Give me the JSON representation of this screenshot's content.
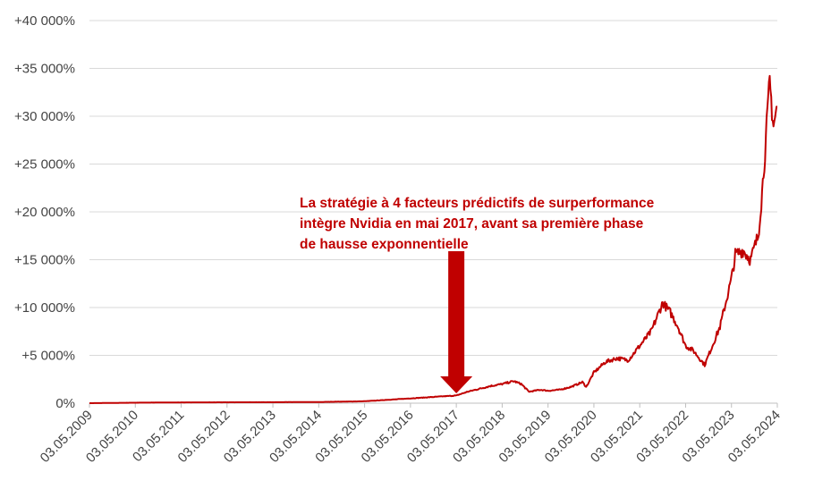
{
  "chart_data": {
    "type": "line",
    "title": "",
    "xlabel": "",
    "ylabel": "",
    "ylim": [
      0,
      40000
    ],
    "y_ticks": [
      "0%",
      "+5 000%",
      "+10 000%",
      "+15 000%",
      "+20 000%",
      "+25 000%",
      "+30 000%",
      "+35 000%",
      "+40 000%"
    ],
    "y_tick_values": [
      0,
      5000,
      10000,
      15000,
      20000,
      25000,
      30000,
      35000,
      40000
    ],
    "x_ticks": [
      "03.05.2009",
      "03.05.2010",
      "03.05.2011",
      "03.05.2012",
      "03.05.2013",
      "03.05.2014",
      "03.05.2015",
      "03.05.2016",
      "03.05.2017",
      "03.05.2018",
      "03.05.2019",
      "03.05.2020",
      "03.05.2021",
      "03.05.2022",
      "03.05.2023",
      "03.05.2024"
    ],
    "grid": "horizontal",
    "line_color": "#c00000",
    "series": [
      {
        "x": [
          "2009-05",
          "2010-05",
          "2011-05",
          "2012-05",
          "2013-05",
          "2014-05",
          "2015-05",
          "2015-11",
          "2016-05",
          "2016-11",
          "2017-05",
          "2017-08",
          "2017-11",
          "2018-02",
          "2018-05",
          "2018-08",
          "2018-10",
          "2018-12",
          "2019-03",
          "2019-05",
          "2019-08",
          "2019-11",
          "2020-02",
          "2020-03",
          "2020-05",
          "2020-08",
          "2020-11",
          "2021-02",
          "2021-05",
          "2021-08",
          "2021-11",
          "2022-01",
          "2022-03",
          "2022-05",
          "2022-07",
          "2022-10",
          "2022-12",
          "2023-02",
          "2023-05",
          "2023-06",
          "2023-08",
          "2023-10",
          "2023-12",
          "2024-01",
          "2024-02",
          "2024-03",
          "2024-04",
          "2024-05"
        ],
        "values": [
          0,
          50,
          80,
          90,
          100,
          120,
          200,
          350,
          500,
          650,
          800,
          1200,
          1500,
          1800,
          2000,
          2300,
          2000,
          1200,
          1400,
          1300,
          1400,
          1700,
          2200,
          1700,
          3200,
          4300,
          4700,
          4500,
          6000,
          7500,
          10500,
          9500,
          8000,
          6000,
          5500,
          4000,
          6000,
          8000,
          13000,
          15500,
          16000,
          15000,
          17500,
          22000,
          27500,
          33500,
          29000,
          31000
        ]
      }
    ],
    "annotations": [
      {
        "text_lines": [
          "La stratégie à 4 facteurs prédictifs de surperformance",
          "intègre Nvidia en mai 2017, avant sa première phase",
          "de hausse exponnentielle"
        ],
        "points_to": "2017-05",
        "color": "#c00000"
      }
    ]
  }
}
